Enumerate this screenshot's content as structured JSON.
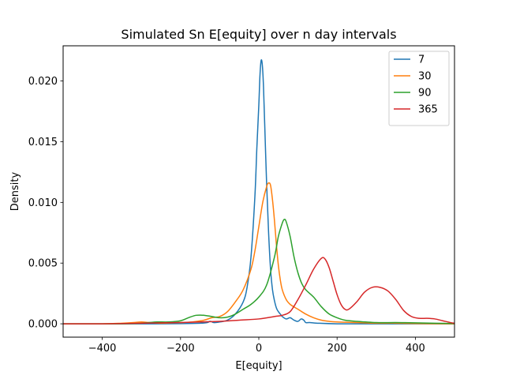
{
  "chart_data": {
    "type": "line",
    "title": "Simulated Sn E[equity] over n day intervals",
    "xlabel": "E[equity]",
    "ylabel": "Density",
    "xlim": [
      -500,
      500
    ],
    "ylim": [
      -0.0011,
      0.0229
    ],
    "xticks": [
      -400,
      -200,
      0,
      200,
      400
    ],
    "xtick_labels": [
      "−400",
      "−200",
      "0",
      "200",
      "400"
    ],
    "yticks": [
      0.0,
      0.005,
      0.01,
      0.015,
      0.02
    ],
    "ytick_labels": [
      "0.000",
      "0.005",
      "0.010",
      "0.015",
      "0.020"
    ],
    "grid": false,
    "legend": "top-right",
    "series": [
      {
        "name": "7",
        "color": "#1f77b4",
        "x": [
          -500,
          -300,
          -150,
          -125,
          -115,
          -100,
          -80,
          -60,
          -40,
          -30,
          -20,
          -10,
          -5,
          0,
          3,
          6,
          9,
          12,
          15,
          20,
          25,
          30,
          35,
          40,
          45,
          50,
          55,
          60,
          70,
          80,
          90,
          100,
          108,
          115,
          120,
          130,
          150,
          200,
          300,
          400,
          500
        ],
        "y": [
          0,
          0,
          5e-05,
          0.0002,
          0.0001,
          0.00015,
          0.0003,
          0.0008,
          0.0018,
          0.003,
          0.0055,
          0.0105,
          0.0145,
          0.018,
          0.0205,
          0.0217,
          0.0213,
          0.0195,
          0.0165,
          0.0115,
          0.0075,
          0.0045,
          0.0028,
          0.0019,
          0.0013,
          0.001,
          0.0008,
          0.0006,
          0.0004,
          0.0005,
          0.0003,
          0.0002,
          0.0004,
          0.0003,
          0.0001,
          0.0001,
          5e-05,
          0,
          0,
          0,
          0
        ]
      },
      {
        "name": "30",
        "color": "#ff7f0e",
        "x": [
          -500,
          -400,
          -350,
          -320,
          -300,
          -280,
          -250,
          -200,
          -170,
          -140,
          -120,
          -100,
          -80,
          -60,
          -40,
          -20,
          -10,
          0,
          10,
          20,
          25,
          30,
          35,
          40,
          45,
          50,
          55,
          60,
          70,
          80,
          100,
          120,
          140,
          160,
          180,
          200,
          250,
          300,
          350,
          400,
          500
        ],
        "y": [
          0,
          0,
          5e-05,
          0.0001,
          0.00015,
          0.0001,
          5e-05,
          0.0001,
          0.00015,
          0.0003,
          0.0005,
          0.0006,
          0.001,
          0.0018,
          0.0028,
          0.0045,
          0.006,
          0.008,
          0.01,
          0.0113,
          0.0116,
          0.0114,
          0.0102,
          0.0085,
          0.0065,
          0.0048,
          0.0036,
          0.0028,
          0.002,
          0.0016,
          0.0012,
          0.0008,
          0.0005,
          0.0003,
          0.0002,
          0.00015,
          0.0001,
          5e-05,
          5e-05,
          2e-05,
          0
        ]
      },
      {
        "name": "90",
        "color": "#2ca02c",
        "x": [
          -500,
          -350,
          -300,
          -280,
          -260,
          -230,
          -200,
          -180,
          -160,
          -140,
          -120,
          -100,
          -80,
          -60,
          -40,
          -20,
          0,
          20,
          40,
          50,
          60,
          65,
          70,
          80,
          90,
          100,
          110,
          120,
          140,
          160,
          180,
          200,
          220,
          250,
          300,
          350,
          400,
          450,
          500
        ],
        "y": [
          0,
          0,
          5e-05,
          0.0001,
          0.00015,
          0.00015,
          0.00025,
          0.0005,
          0.0007,
          0.0007,
          0.0006,
          0.0005,
          0.00055,
          0.0008,
          0.0012,
          0.0016,
          0.0022,
          0.0032,
          0.0055,
          0.0072,
          0.0083,
          0.0086,
          0.0084,
          0.0072,
          0.0055,
          0.0042,
          0.0033,
          0.0028,
          0.0022,
          0.0014,
          0.0008,
          0.0005,
          0.0003,
          0.0002,
          0.0001,
          0.0001,
          8e-05,
          5e-05,
          2e-05
        ]
      },
      {
        "name": "365",
        "color": "#d62728",
        "x": [
          -500,
          -400,
          -300,
          -200,
          -150,
          -100,
          -50,
          0,
          40,
          60,
          80,
          100,
          120,
          140,
          160,
          170,
          180,
          190,
          200,
          210,
          220,
          230,
          250,
          270,
          290,
          310,
          330,
          350,
          370,
          390,
          410,
          430,
          450,
          470,
          490,
          500
        ],
        "y": [
          0,
          0,
          5e-05,
          0.0001,
          0.00015,
          0.0002,
          0.0003,
          0.0004,
          0.0006,
          0.0007,
          0.001,
          0.002,
          0.0032,
          0.0045,
          0.0054,
          0.0053,
          0.0046,
          0.0035,
          0.0024,
          0.0016,
          0.0012,
          0.0012,
          0.0018,
          0.0026,
          0.003,
          0.003,
          0.0027,
          0.002,
          0.0011,
          0.0006,
          0.00045,
          0.00045,
          0.0004,
          0.00025,
          0.0001,
          5e-05
        ]
      }
    ]
  }
}
